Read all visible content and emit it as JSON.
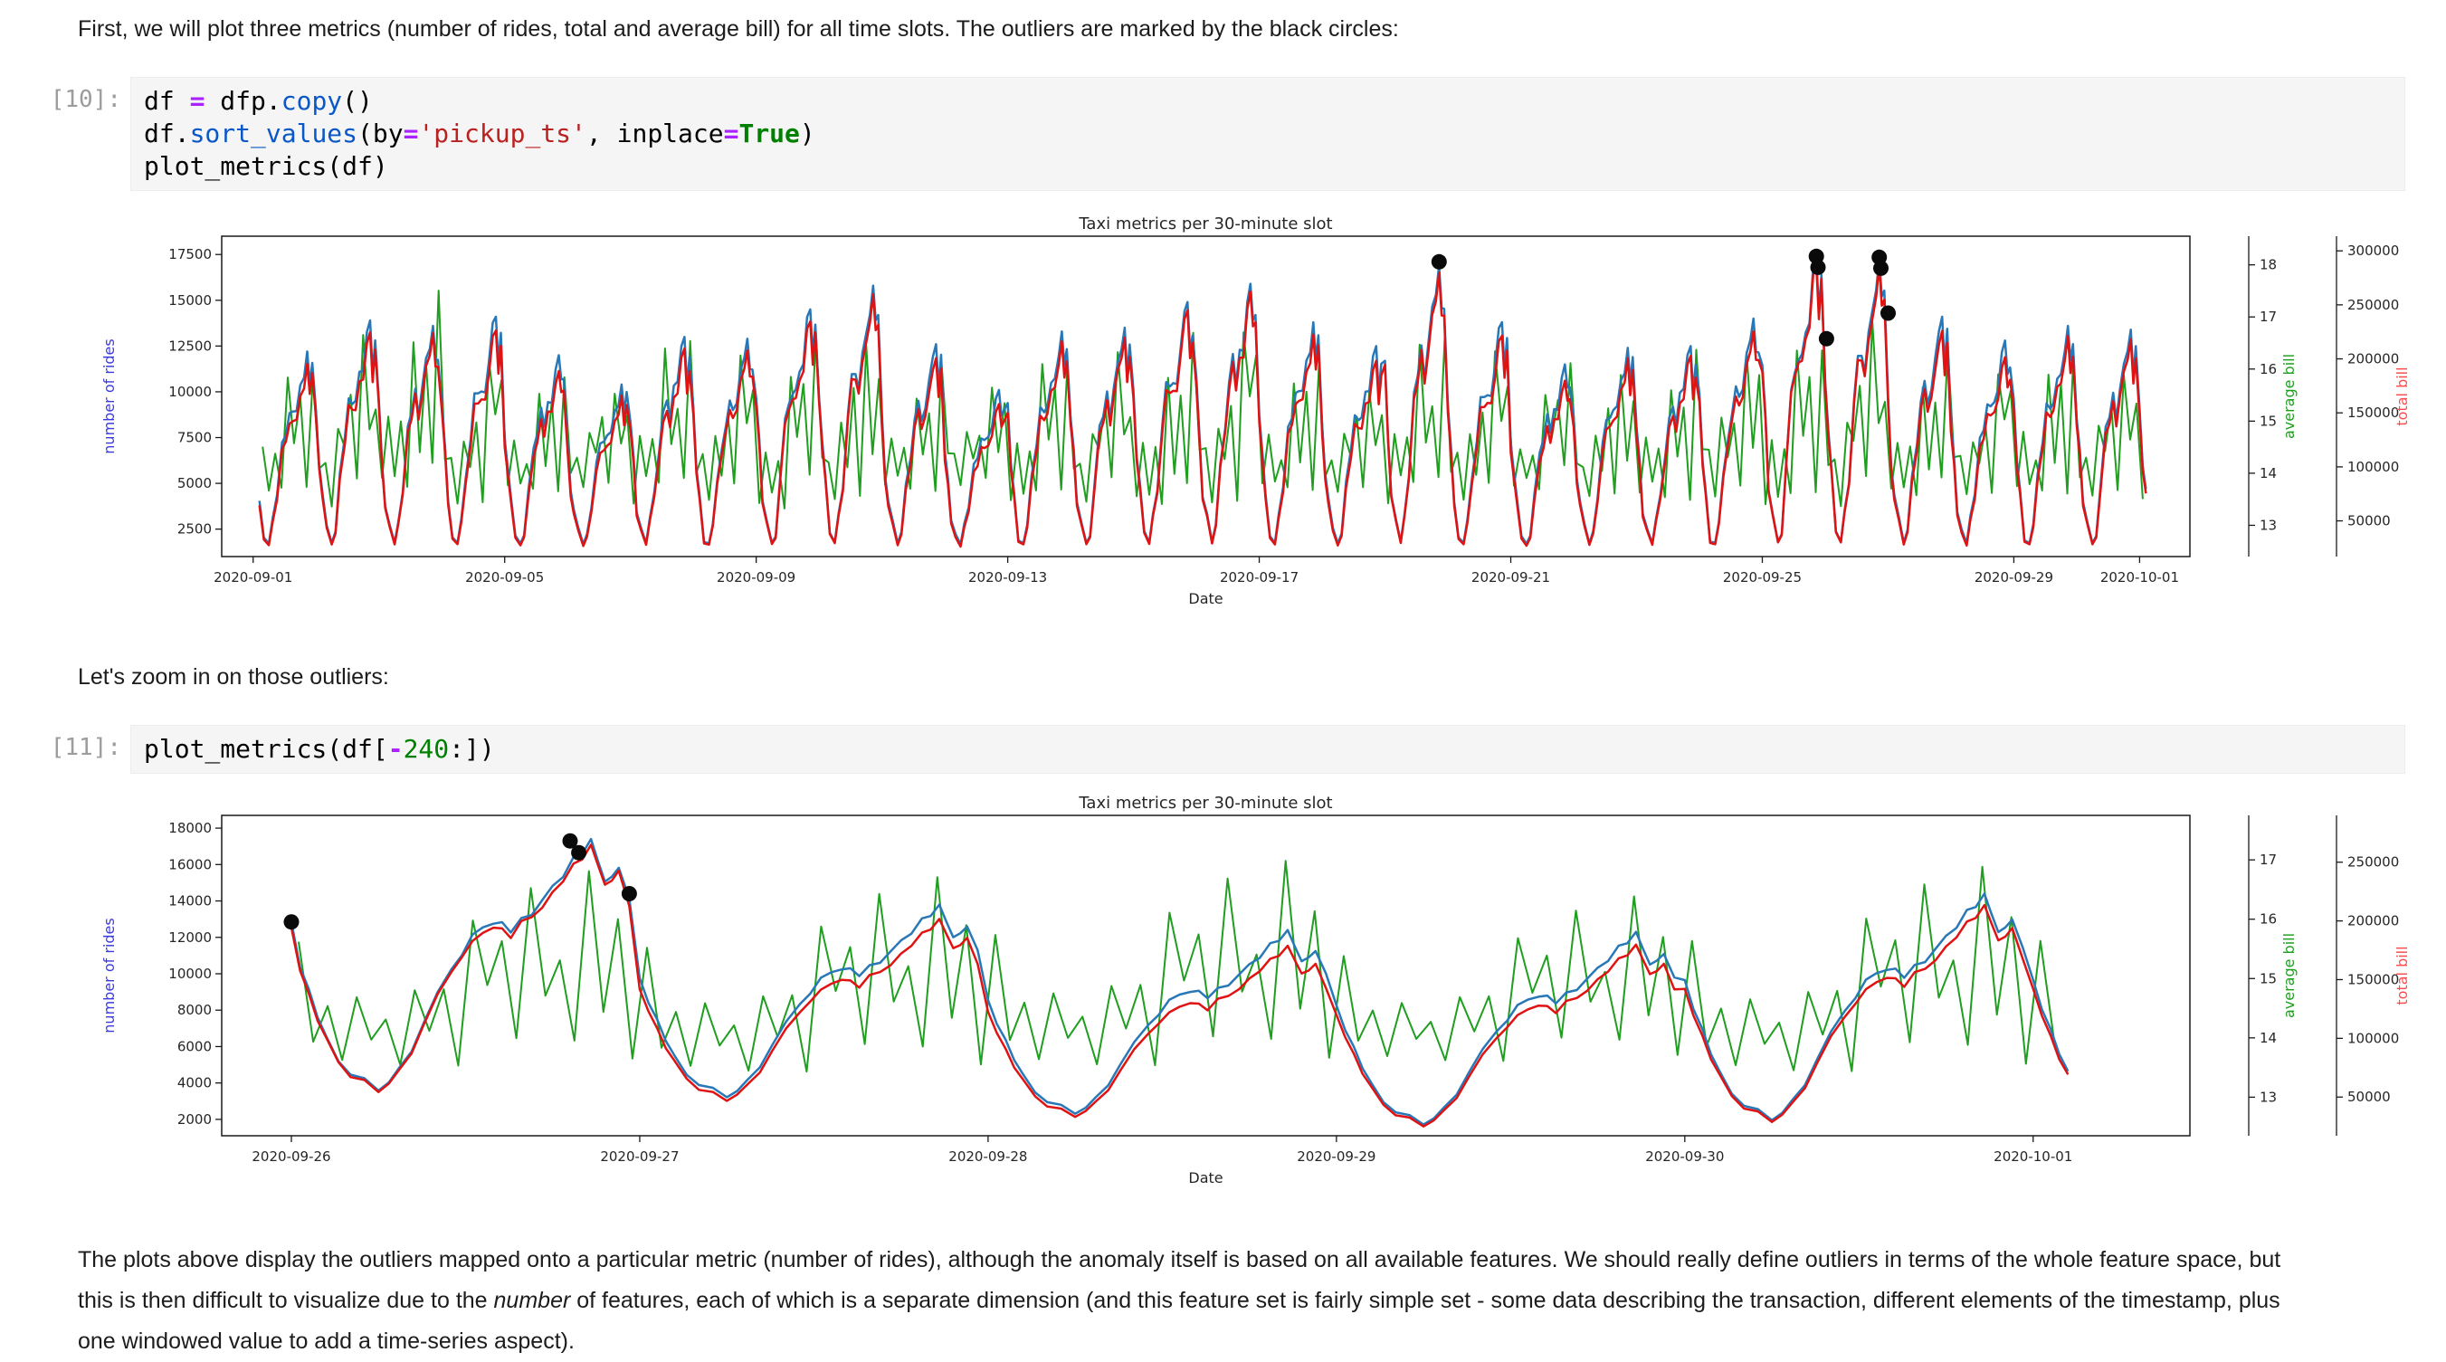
{
  "markdown": {
    "para1": "First, we will plot three metrics (number of rides, total and average bill) for all time slots. The outliers are marked by the black circles:",
    "para2": "Let's zoom in on those outliers:",
    "para3_part1": "The plots above display the outliers mapped onto a particular metric (number of rides), although the anomaly itself is based on all available features. We should really define outliers in terms of the whole feature space, but this is then difficult to visualize due to the ",
    "para3_italic": "number",
    "para3_part2": " of features, each of which is a separate dimension (and this feature set is fairly simple set - some data describing the transaction, different elements of the timestamp, plus one windowed value to add a time-series aspect)."
  },
  "cells": [
    {
      "prompt": "[10]:",
      "lines": [
        [
          [
            "df ",
            "p"
          ],
          [
            "=",
            "op"
          ],
          [
            " dfp.",
            "p"
          ],
          [
            "copy",
            "fn"
          ],
          [
            "()",
            "p"
          ]
        ],
        [
          [
            "df.",
            "p"
          ],
          [
            "sort_values",
            "fn"
          ],
          [
            "(by",
            "p"
          ],
          [
            "=",
            "op"
          ],
          [
            "'pickup_ts'",
            "str"
          ],
          [
            ", inplace",
            "p"
          ],
          [
            "=",
            "op"
          ],
          [
            "True",
            "kw"
          ],
          [
            ")",
            "p"
          ]
        ],
        [
          [
            "plot_metrics(df)",
            "p"
          ]
        ]
      ]
    },
    {
      "prompt": "[11]:",
      "lines": [
        [
          [
            "plot_metrics(df[",
            "p"
          ],
          [
            "-",
            "op"
          ],
          [
            "240",
            "num"
          ],
          [
            ":])",
            "p"
          ]
        ]
      ]
    }
  ],
  "line_shape": {
    "profile_t": [
      0,
      0.05,
      0.1,
      0.17,
      0.25,
      0.31,
      0.38,
      0.46,
      0.52,
      0.58,
      0.63,
      0.69,
      0.75,
      0.81,
      0.86,
      0.9,
      0.94,
      1.0
    ],
    "profile_m": [
      0.62,
      0.4,
      0.22,
      0.08,
      0.02,
      0.1,
      0.28,
      0.5,
      0.62,
      0.68,
      0.64,
      0.72,
      0.8,
      0.92,
      1.0,
      0.82,
      0.9,
      0.62
    ],
    "noise": [
      0.85,
      0.25,
      0.65,
      0.15,
      0.95,
      0.45,
      0.7,
      0.1,
      0.8,
      0.35,
      0.6,
      0.05,
      0.9,
      0.5,
      0.75,
      0.2,
      1.0,
      0.4,
      0.55,
      0.15,
      0.88,
      0.3,
      0.72,
      0.08
    ],
    "wiggle": [
      0.3,
      -0.5,
      0.8,
      -0.2,
      0.6,
      -0.8,
      0.1,
      0.9,
      -0.4,
      0.5,
      -0.9,
      0.2,
      0.7,
      -0.3,
      -0.6,
      0.4
    ]
  },
  "chart_data": [
    {
      "type": "line",
      "title": "Taxi metrics per 30-minute slot",
      "xlabel": "Date",
      "x_unit": "days since 2020-09-01",
      "xlim": [
        -0.5,
        30.8
      ],
      "x_ticks": [
        [
          0,
          "2020-09-01"
        ],
        [
          4,
          "2020-09-05"
        ],
        [
          8,
          "2020-09-09"
        ],
        [
          12,
          "2020-09-13"
        ],
        [
          16,
          "2020-09-17"
        ],
        [
          20,
          "2020-09-21"
        ],
        [
          24,
          "2020-09-25"
        ],
        [
          28,
          "2020-09-29"
        ],
        [
          30,
          "2020-10-01"
        ]
      ],
      "left_axis": {
        "label": "number of rides",
        "color": "#3b3bdd",
        "ticks": [
          2500,
          5000,
          7500,
          10000,
          12500,
          15000,
          17500
        ],
        "lim": [
          1000,
          18500
        ]
      },
      "avg_axis": {
        "label": "average bill",
        "color": "#1da01d",
        "ticks": [
          13,
          14,
          15,
          16,
          17,
          18
        ],
        "lim": [
          12.4,
          18.55
        ]
      },
      "total_axis": {
        "label": "total bill",
        "color": "#ff4a4a",
        "ticks": [
          50000,
          100000,
          150000,
          200000,
          250000,
          300000
        ],
        "lim": [
          16950,
          313575
        ]
      },
      "colors": {
        "rides": "#2878b8",
        "avg": "#1f9e1f",
        "total": "#e01212"
      },
      "days_format": [
        "rides_peak",
        "rides_trough",
        "avg_bill_low",
        "avg_bill_high",
        "avg_bill_factor_for_total"
      ],
      "days": [
        [
          12200,
          1500,
          13.4,
          16.8,
          16.0
        ],
        [
          13900,
          1500,
          13.3,
          17.2,
          16.2
        ],
        [
          13600,
          1500,
          13.5,
          18.2,
          16.4
        ],
        [
          14100,
          1500,
          13.3,
          17.0,
          16.1
        ],
        [
          12000,
          1500,
          13.4,
          16.6,
          15.9
        ],
        [
          10400,
          1500,
          13.6,
          16.4,
          15.8
        ],
        [
          13000,
          1500,
          13.3,
          17.4,
          16.0
        ],
        [
          12900,
          1500,
          13.4,
          16.9,
          16.2
        ],
        [
          14500,
          1500,
          13.2,
          17.1,
          16.3
        ],
        [
          15800,
          1500,
          13.3,
          17.6,
          16.4
        ],
        [
          12600,
          1500,
          13.5,
          16.7,
          16.0
        ],
        [
          10100,
          1500,
          13.6,
          16.3,
          15.8
        ],
        [
          13300,
          1500,
          13.3,
          17.2,
          16.1
        ],
        [
          13500,
          1500,
          13.4,
          16.8,
          16.2
        ],
        [
          14900,
          1500,
          13.2,
          17.3,
          16.3
        ],
        [
          15900,
          1500,
          13.3,
          17.7,
          16.4
        ],
        [
          13800,
          1500,
          13.4,
          16.9,
          16.1
        ],
        [
          12500,
          1500,
          13.5,
          16.5,
          15.9
        ],
        [
          16900,
          1500,
          13.3,
          17.5,
          16.5
        ],
        [
          13800,
          1500,
          13.4,
          17.0,
          16.1
        ],
        [
          11500,
          1500,
          13.6,
          16.4,
          15.8
        ],
        [
          12400,
          1500,
          13.4,
          16.8,
          16.0
        ],
        [
          12500,
          1500,
          13.3,
          17.1,
          16.1
        ],
        [
          14000,
          1500,
          13.3,
          17.3,
          16.2
        ],
        [
          17400,
          1500,
          13.2,
          17.6,
          16.6
        ],
        [
          17300,
          1500,
          13.3,
          17.5,
          16.5
        ],
        [
          14100,
          1500,
          13.4,
          16.9,
          16.1
        ],
        [
          12800,
          1500,
          13.5,
          16.6,
          15.9
        ],
        [
          13600,
          1500,
          13.3,
          17.2,
          16.1
        ],
        [
          13400,
          1500,
          13.4,
          17.0,
          16.2
        ]
      ],
      "data_start": 0.1,
      "tail_fraction": 0.1,
      "smooth": false,
      "wiggle_amp": 0.06,
      "avg_per_day": 10,
      "start_override": null,
      "outliers_format": [
        "day",
        "number_of_rides"
      ],
      "outliers": [
        [
          18.86,
          17100
        ],
        [
          24.86,
          17400
        ],
        [
          24.885,
          16800
        ],
        [
          25.02,
          12900
        ],
        [
          25.86,
          17350
        ],
        [
          25.885,
          16750
        ],
        [
          26.0,
          14300
        ]
      ]
    },
    {
      "type": "line",
      "title": "Taxi metrics per 30-minute slot",
      "xlabel": "Date",
      "x_unit": "days since 2020-09-26",
      "xlim": [
        -0.2,
        5.45
      ],
      "x_ticks": [
        [
          0,
          "2020-09-26"
        ],
        [
          1,
          "2020-09-27"
        ],
        [
          2,
          "2020-09-28"
        ],
        [
          3,
          "2020-09-29"
        ],
        [
          4,
          "2020-09-30"
        ],
        [
          5,
          "2020-10-01"
        ]
      ],
      "left_axis": {
        "label": "number of rides",
        "color": "#3b3bdd",
        "ticks": [
          2000,
          4000,
          6000,
          8000,
          10000,
          12000,
          14000,
          16000,
          18000
        ],
        "lim": [
          1100,
          18700
        ]
      },
      "avg_axis": {
        "label": "average bill",
        "color": "#1da01d",
        "ticks": [
          13,
          14,
          15,
          16,
          17
        ],
        "lim": [
          12.35,
          17.75
        ]
      },
      "total_axis": {
        "label": "total bill",
        "color": "#ff4a4a",
        "ticks": [
          50000,
          100000,
          150000,
          200000,
          250000
        ],
        "lim": [
          17050,
          289850
        ]
      },
      "colors": {
        "rides": "#2878b8",
        "avg": "#1f9e1f",
        "total": "#e01212"
      },
      "days_format": [
        "rides_peak",
        "rides_trough",
        "avg_bill_low",
        "avg_bill_high",
        "avg_bill_factor_for_total"
      ],
      "days": [
        [
          17400,
          3300,
          13.4,
          17.3,
          15.2
        ],
        [
          13800,
          3000,
          13.3,
          17.2,
          14.6
        ],
        [
          12400,
          2100,
          13.4,
          17.5,
          14.4
        ],
        [
          12300,
          1500,
          13.5,
          16.8,
          14.6
        ],
        [
          14400,
          1700,
          13.3,
          17.4,
          14.8
        ]
      ],
      "data_start": 0.0,
      "tail_fraction": 0.1,
      "smooth": true,
      "wiggle_amp": 0.02,
      "avg_per_day": 24,
      "start_override": 12850,
      "outliers_format": [
        "day",
        "number_of_rides"
      ],
      "outliers": [
        [
          0.0,
          12850
        ],
        [
          0.8,
          17300
        ],
        [
          0.825,
          16650
        ],
        [
          0.97,
          14400
        ]
      ]
    }
  ]
}
